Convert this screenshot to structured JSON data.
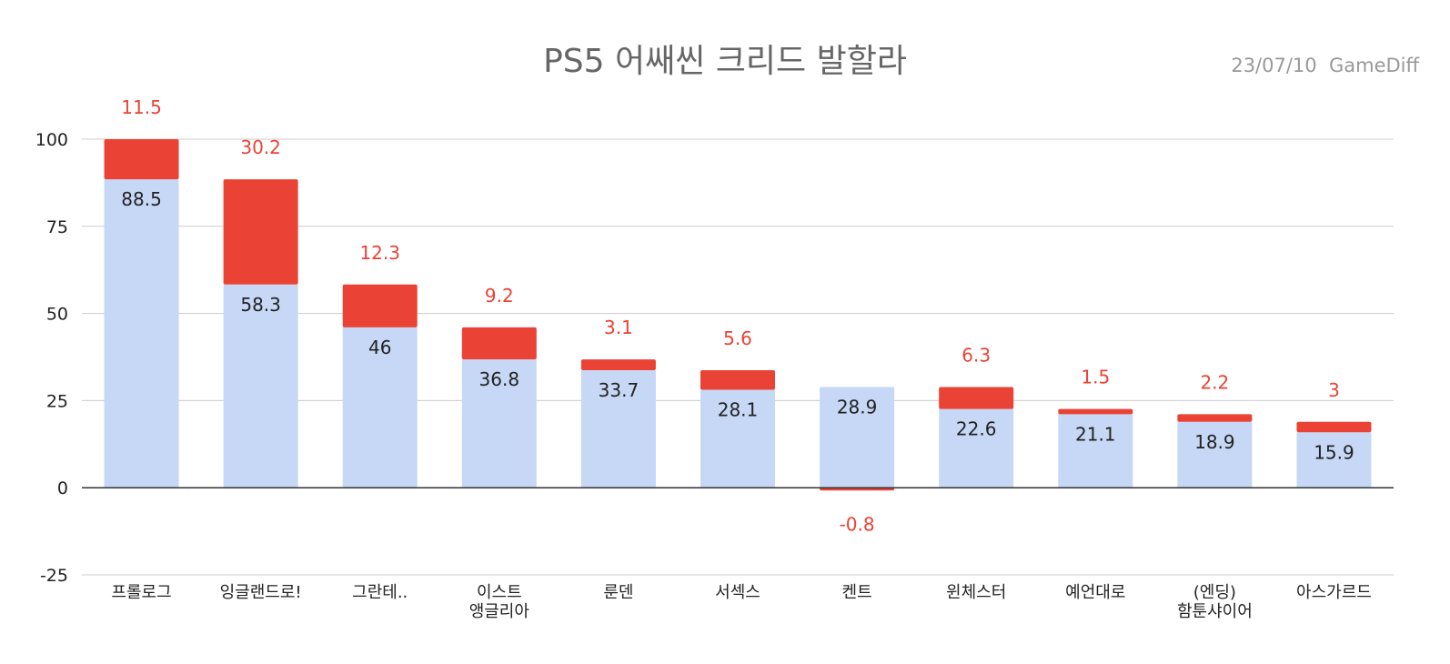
{
  "chart_data": {
    "type": "bar",
    "stacked": true,
    "title": "PS5 어쌔씬 크리드 발할라",
    "subtitle": "23/07/10  GameDiff",
    "ylim": [
      -25,
      100
    ],
    "yticks": [
      100,
      75,
      50,
      25,
      0,
      -25
    ],
    "categories": [
      [
        "프롤로그"
      ],
      [
        "잉글랜드로!"
      ],
      [
        "그란테.."
      ],
      [
        "이스트",
        "앵글리아"
      ],
      [
        "룬덴"
      ],
      [
        "서섹스"
      ],
      [
        "켄트"
      ],
      [
        "윈체스터"
      ],
      [
        "예언대로"
      ],
      [
        "(엔딩)",
        "함툰샤이어"
      ],
      [
        "아스가르드"
      ]
    ],
    "series": [
      {
        "name": "base",
        "color": "#c6d8f5",
        "values": [
          88.5,
          58.3,
          46,
          36.8,
          33.7,
          28.1,
          28.9,
          22.6,
          21.1,
          18.9,
          15.9
        ]
      },
      {
        "name": "delta",
        "color": "#ea4335",
        "values": [
          11.5,
          30.2,
          12.3,
          9.2,
          3.1,
          5.6,
          -0.8,
          6.3,
          1.5,
          2.2,
          3
        ]
      }
    ]
  }
}
